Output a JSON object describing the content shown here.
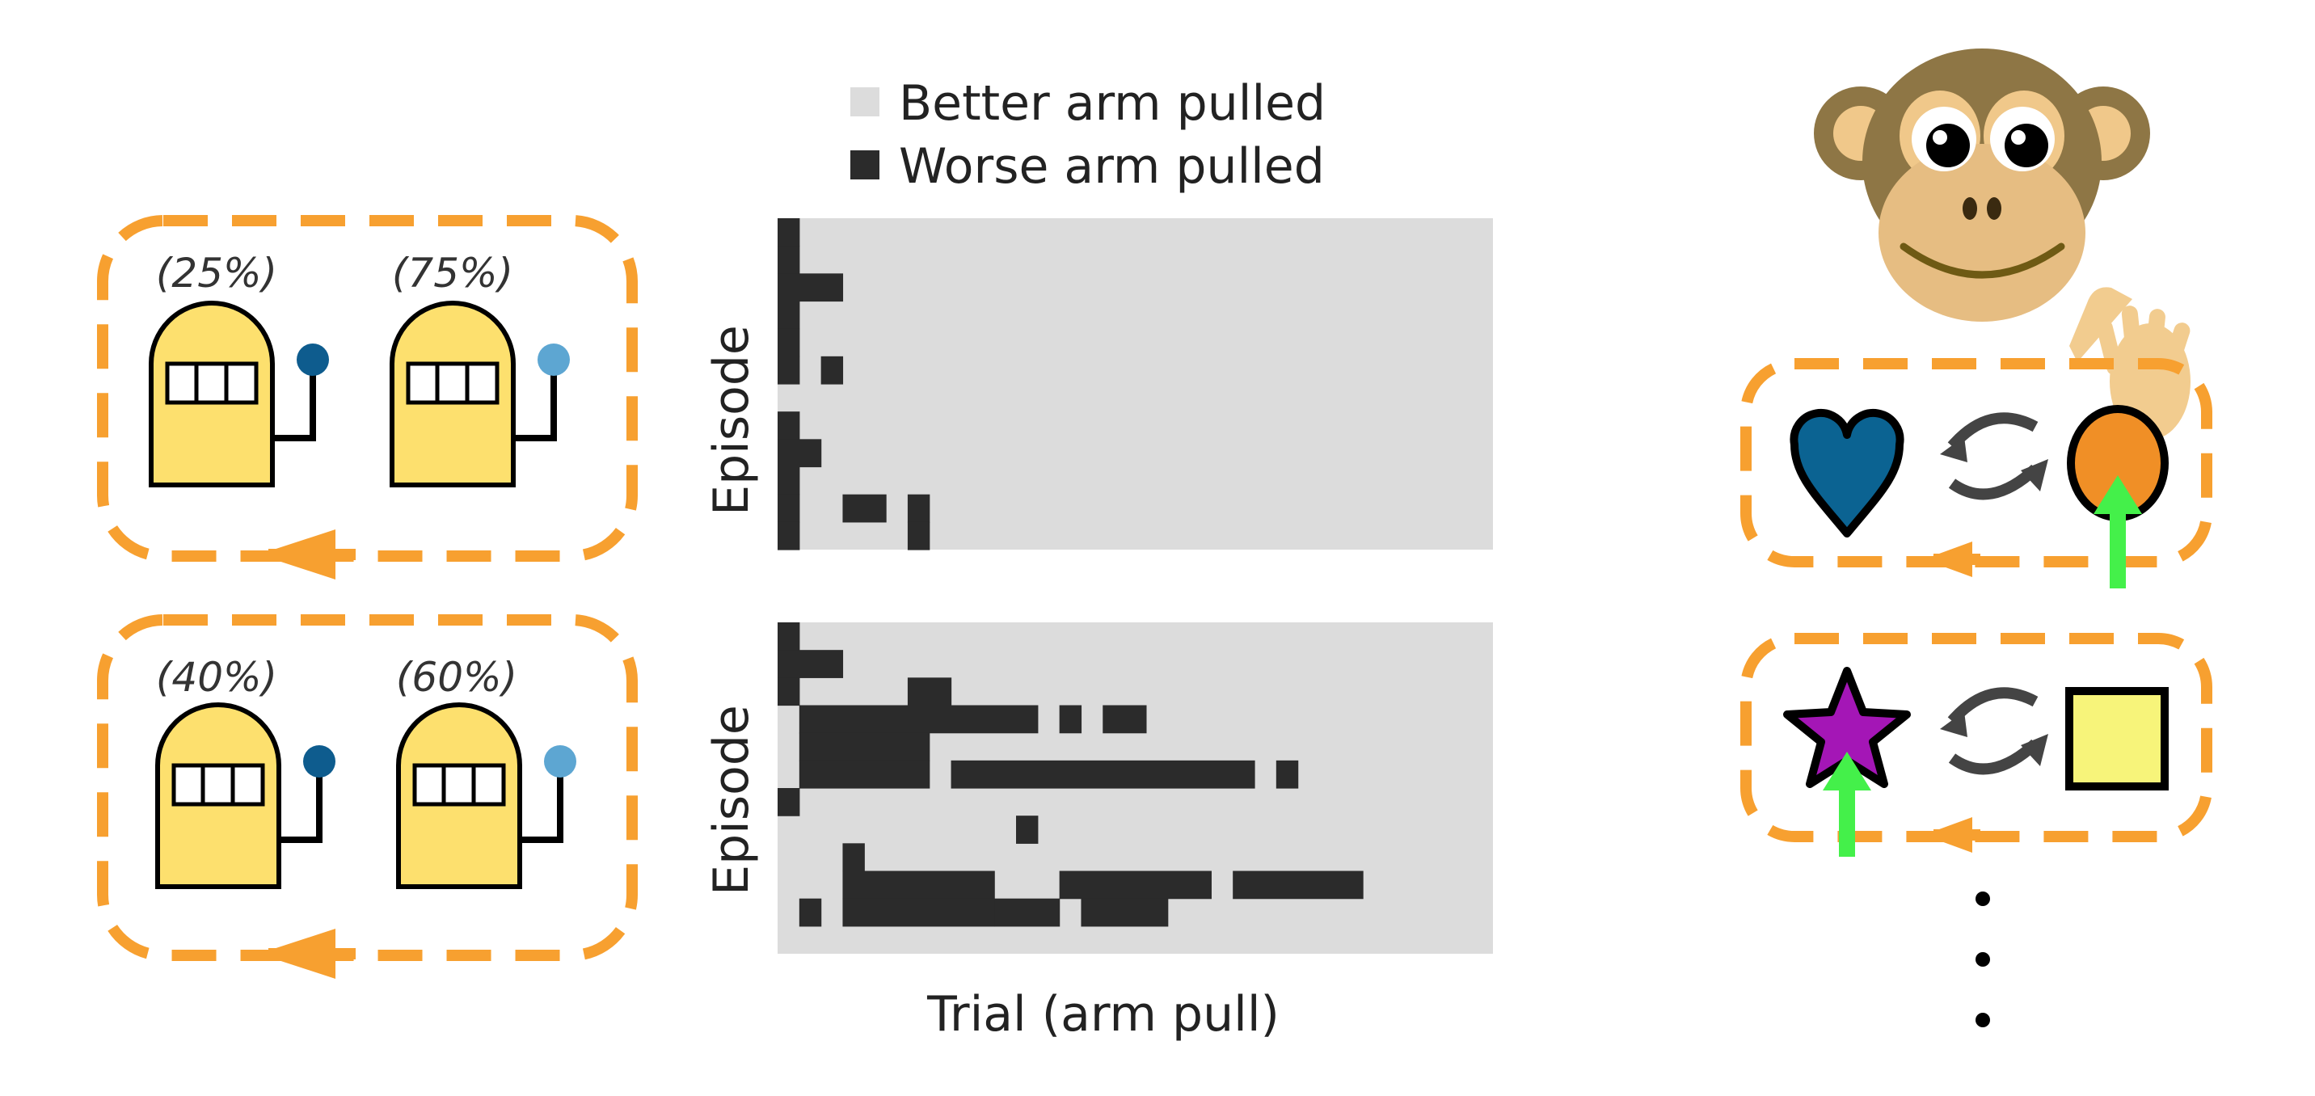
{
  "colors": {
    "orange": "#f7a030",
    "machine_body": "#fde06e",
    "knob_dark": "#0e5c8e",
    "knob_light": "#5da6d2",
    "better": "#dcdcdc",
    "worse": "#2b2b2b",
    "heart": "#0b6392",
    "orange_oval": "#f08f26",
    "star": "#a416b6",
    "square": "#f7f47a",
    "green_arrow": "#44f04a"
  },
  "bandits": [
    {
      "arms": [
        {
          "prob": "(25%)",
          "knob": "dark"
        },
        {
          "prob": "(75%)",
          "knob": "light"
        }
      ]
    },
    {
      "arms": [
        {
          "prob": "(40%)",
          "knob": "dark"
        },
        {
          "prob": "(60%)",
          "knob": "light"
        }
      ]
    }
  ],
  "legend": {
    "better": "Better arm pulled",
    "worse": "Worse arm pulled"
  },
  "chart_data": {
    "type": "heatmap",
    "xlabel": "Trial (arm pull)",
    "ylabel": "Episode",
    "categories": [
      "Better arm pulled",
      "Worse arm pulled"
    ],
    "panels": [
      {
        "n_trials": 33,
        "episodes": 12,
        "worse_runs": [
          [
            [
              0,
              1
            ]
          ],
          [
            [
              0,
              1
            ]
          ],
          [
            [
              0,
              3
            ]
          ],
          [
            [
              0,
              1
            ]
          ],
          [
            [
              0,
              1
            ]
          ],
          [
            [
              0,
              1
            ],
            [
              2,
              3
            ]
          ],
          [],
          [
            [
              0,
              1
            ]
          ],
          [
            [
              0,
              2
            ]
          ],
          [
            [
              0,
              1
            ]
          ],
          [
            [
              0,
              1
            ],
            [
              3,
              5
            ],
            [
              6,
              7
            ]
          ],
          [
            [
              0,
              1
            ],
            [
              6,
              7
            ]
          ]
        ]
      },
      {
        "n_trials": 33,
        "episodes": 12,
        "worse_runs": [
          [
            [
              0,
              1
            ]
          ],
          [
            [
              0,
              3
            ]
          ],
          [
            [
              0,
              1
            ],
            [
              6,
              8
            ]
          ],
          [
            [
              1,
              12
            ],
            [
              13,
              14
            ],
            [
              15,
              17
            ]
          ],
          [
            [
              1,
              7
            ]
          ],
          [
            [
              1,
              7
            ],
            [
              8,
              22
            ],
            [
              23,
              24
            ]
          ],
          [
            [
              0,
              1
            ]
          ],
          [
            [
              11,
              12
            ]
          ],
          [
            [
              3,
              4
            ]
          ],
          [
            [
              3,
              10
            ],
            [
              13,
              20
            ],
            [
              21,
              27
            ]
          ],
          [
            [
              1,
              2
            ],
            [
              3,
              10
            ],
            [
              10,
              13
            ],
            [
              14,
              18
            ]
          ],
          []
        ]
      }
    ]
  },
  "tasks": {
    "task1": {
      "left": "heart",
      "right": "orange-oval",
      "chosen": "right"
    },
    "task2": {
      "left": "star",
      "right": "square",
      "chosen": "left"
    }
  }
}
